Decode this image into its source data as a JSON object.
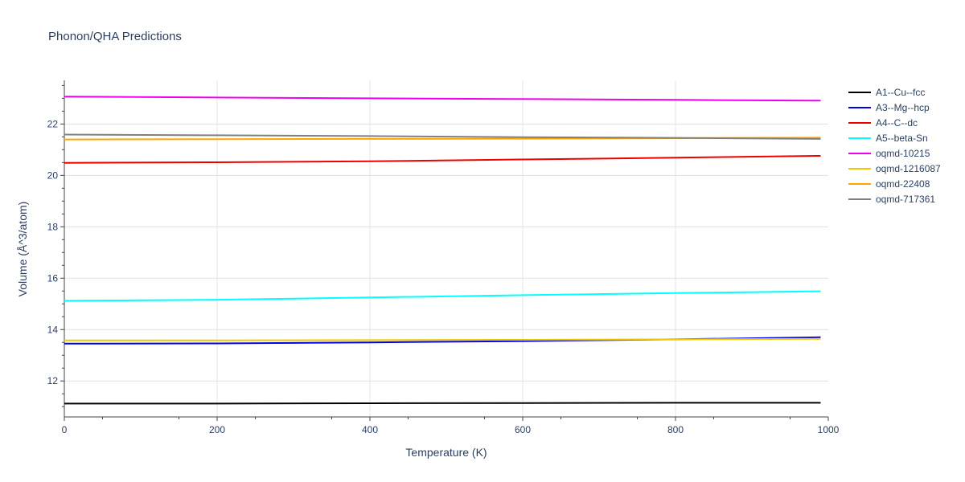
{
  "chart_data": {
    "type": "line",
    "title": "Phonon/QHA Predictions",
    "xlabel": "Temperature (K)",
    "ylabel": "Volume (Å^3/atom)",
    "xlim": [
      0,
      1000
    ],
    "ylim": [
      10.6,
      23.7
    ],
    "xticks": [
      0,
      200,
      400,
      600,
      800,
      1000
    ],
    "yticks": [
      12,
      14,
      16,
      18,
      20,
      22
    ],
    "grid": true,
    "legend_position": "top-right",
    "series": [
      {
        "name": "A1--Cu--fcc",
        "color": "#000000",
        "x": [
          0,
          200,
          400,
          600,
          800,
          990
        ],
        "y": [
          11.12,
          11.12,
          11.13,
          11.14,
          11.15,
          11.15
        ]
      },
      {
        "name": "A3--Mg--hcp",
        "color": "#0000ee",
        "x": [
          0,
          200,
          400,
          600,
          800,
          990
        ],
        "y": [
          13.45,
          13.46,
          13.5,
          13.55,
          13.62,
          13.7
        ]
      },
      {
        "name": "A4--C--dc",
        "color": "#ee0000",
        "x": [
          0,
          200,
          400,
          600,
          800,
          990
        ],
        "y": [
          20.49,
          20.51,
          20.55,
          20.62,
          20.69,
          20.76
        ]
      },
      {
        "name": "A5--beta-Sn",
        "color": "#00ffff",
        "x": [
          0,
          200,
          400,
          600,
          800,
          990
        ],
        "y": [
          15.12,
          15.16,
          15.25,
          15.34,
          15.42,
          15.49
        ]
      },
      {
        "name": "oqmd-10215",
        "color": "#ee00ee",
        "x": [
          0,
          200,
          400,
          600,
          800,
          990
        ],
        "y": [
          23.07,
          23.03,
          23.0,
          22.97,
          22.94,
          22.91
        ]
      },
      {
        "name": "oqmd-1216087",
        "color": "#eec900",
        "x": [
          0,
          200,
          400,
          600,
          800,
          990
        ],
        "y": [
          13.58,
          13.58,
          13.59,
          13.6,
          13.62,
          13.64
        ]
      },
      {
        "name": "oqmd-22408",
        "color": "#ffa500",
        "x": [
          0,
          200,
          400,
          600,
          800,
          990
        ],
        "y": [
          21.4,
          21.41,
          21.42,
          21.43,
          21.45,
          21.47
        ]
      },
      {
        "name": "oqmd-717361",
        "color": "#808080",
        "x": [
          0,
          200,
          400,
          600,
          800,
          990
        ],
        "y": [
          21.59,
          21.56,
          21.53,
          21.49,
          21.46,
          21.42
        ]
      }
    ]
  }
}
